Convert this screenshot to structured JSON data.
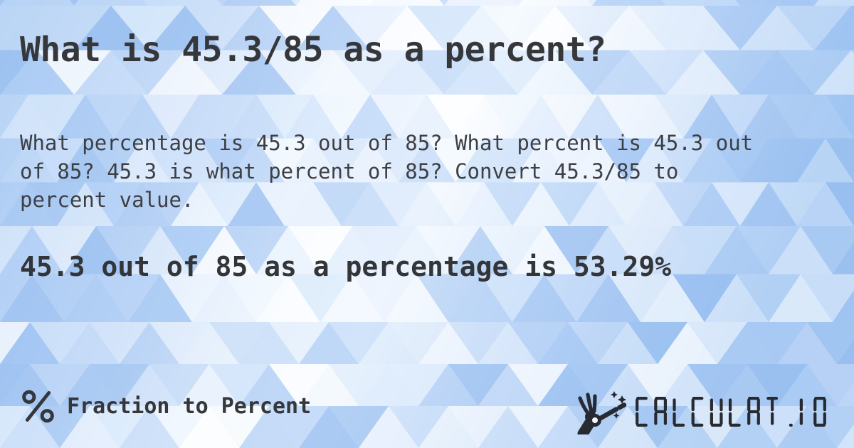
{
  "page": {
    "title": "What is 45.3/85 as a percent?",
    "body_lines": [
      "What percentage is 45.3 out of 85? What percent is 45.3 out",
      "of 85? 45.3 is what percent of 85? Convert 45.3/85 to",
      "percent value."
    ],
    "answer": "45.3 out of 85 as a percentage is 53.29%"
  },
  "footer": {
    "category_icon": "percent-icon",
    "category_label": "Fraction to Percent",
    "brand_icon": "magic-wand-hand-icon",
    "brand_text": "CALCULAT.IO"
  },
  "colors": {
    "title_text": "#35373b",
    "body_text": "#3d3f44",
    "answer_text": "#333539",
    "logo_dark": "#272b31",
    "bg_blue_edge": "#9dc3f0",
    "bg_blue_light": "#cfe2fa",
    "bg_white": "#ffffff"
  }
}
